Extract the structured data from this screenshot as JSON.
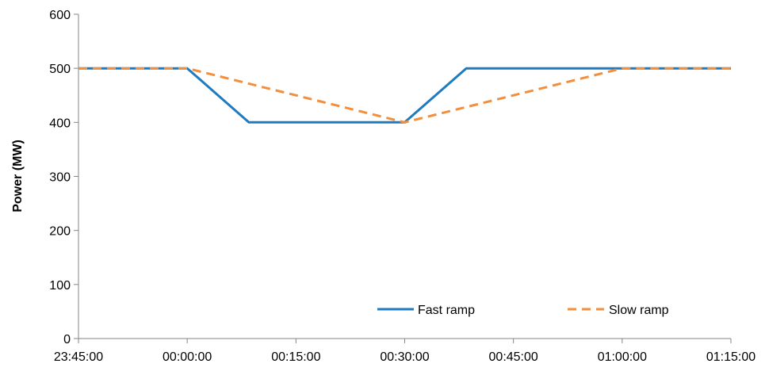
{
  "chart_data": {
    "type": "line",
    "title": "",
    "xlabel": "",
    "ylabel": "Power (MW)",
    "x": [
      "23:45:00",
      "00:00:00",
      "00:15:00",
      "00:30:00",
      "00:45:00",
      "01:00:00",
      "01:15:00"
    ],
    "ylim": [
      0,
      600
    ],
    "yticks": [
      0,
      100,
      200,
      300,
      400,
      500,
      600
    ],
    "grid": false,
    "legend": "bottom-right",
    "series": [
      {
        "name": "Fast ramp",
        "style": "solid",
        "color": "#1f7bbf",
        "points": [
          [
            "23:45:00",
            500
          ],
          [
            "00:00:00",
            500
          ],
          [
            "00:08:30",
            400
          ],
          [
            "00:30:00",
            400
          ],
          [
            "00:38:30",
            500
          ],
          [
            "01:15:00",
            500
          ]
        ]
      },
      {
        "name": "Slow ramp",
        "style": "dashed",
        "color": "#f28e3c",
        "points": [
          [
            "23:45:00",
            500
          ],
          [
            "00:00:00",
            500
          ],
          [
            "00:30:00",
            400
          ],
          [
            "01:00:00",
            500
          ],
          [
            "01:15:00",
            500
          ]
        ]
      }
    ]
  }
}
